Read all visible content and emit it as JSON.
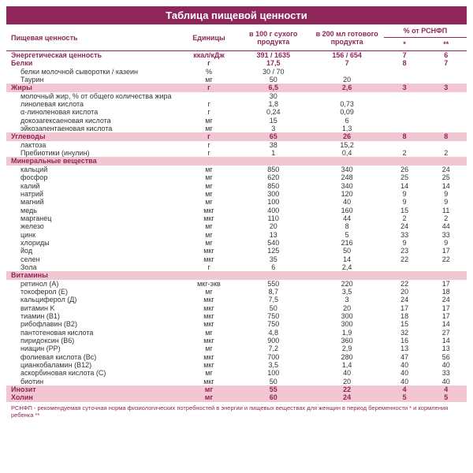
{
  "title": "Таблица пищевой ценности",
  "headers": {
    "name": "Пищевая ценность",
    "unit": "Единицы",
    "per100g": "в 100 г сухого продукта",
    "per200ml": "в 200 мл готового продукта",
    "rsnfp": "% от РСНФП",
    "star1": "*",
    "star2": "**"
  },
  "rows": [
    {
      "cls": "bold",
      "name": "Энергетическая ценность",
      "unit": "ккал/кДж",
      "v1": "391 / 1635",
      "v2": "156 / 654",
      "p1": "7",
      "p2": "6"
    },
    {
      "cls": "bold",
      "name": "Белки",
      "unit": "г",
      "v1": "17,5",
      "v2": "7",
      "p1": "8",
      "p2": "7"
    },
    {
      "cls": "indent",
      "name": "белки молочной сыворотки / казеин",
      "unit": "%",
      "v1": "30 / 70",
      "v2": "",
      "p1": "",
      "p2": ""
    },
    {
      "cls": "indent",
      "name": "Таурин",
      "unit": "мг",
      "v1": "50",
      "v2": "20",
      "p1": "",
      "p2": ""
    },
    {
      "cls": "pink",
      "name": "Жиры",
      "unit": "г",
      "v1": "6,5",
      "v2": "2,6",
      "p1": "3",
      "p2": "3"
    },
    {
      "cls": "indent",
      "name": "молочный жир, % от общего количества жира",
      "unit": "",
      "v1": "30",
      "v2": "",
      "p1": "",
      "p2": ""
    },
    {
      "cls": "indent",
      "name": "линолевая кислота",
      "unit": "г",
      "v1": "1,8",
      "v2": "0,73",
      "p1": "",
      "p2": ""
    },
    {
      "cls": "indent",
      "name": "α-линоленовая кислота",
      "unit": "г",
      "v1": "0,24",
      "v2": "0,09",
      "p1": "",
      "p2": ""
    },
    {
      "cls": "indent",
      "name": "докозагексаеновая кислота",
      "unit": "мг",
      "v1": "15",
      "v2": "6",
      "p1": "",
      "p2": ""
    },
    {
      "cls": "indent",
      "name": "эйкозапентаеновая кислота",
      "unit": "мг",
      "v1": "3",
      "v2": "1,3",
      "p1": "",
      "p2": ""
    },
    {
      "cls": "pink",
      "name": "Углеводы",
      "unit": "г",
      "v1": "65",
      "v2": "26",
      "p1": "8",
      "p2": "8"
    },
    {
      "cls": "indent",
      "name": "лактоза",
      "unit": "г",
      "v1": "38",
      "v2": "15,2",
      "p1": "",
      "p2": ""
    },
    {
      "cls": "indent",
      "name": "Пребиотики (инулин)",
      "unit": "г",
      "v1": "1",
      "v2": "0,4",
      "p1": "2",
      "p2": "2"
    },
    {
      "cls": "section",
      "name": "Минеральные вещества",
      "unit": "",
      "v1": "",
      "v2": "",
      "p1": "",
      "p2": ""
    },
    {
      "cls": "indent",
      "name": "кальций",
      "unit": "мг",
      "v1": "850",
      "v2": "340",
      "p1": "26",
      "p2": "24"
    },
    {
      "cls": "indent",
      "name": "фосфор",
      "unit": "мг",
      "v1": "620",
      "v2": "248",
      "p1": "25",
      "p2": "25"
    },
    {
      "cls": "indent",
      "name": "калий",
      "unit": "мг",
      "v1": "850",
      "v2": "340",
      "p1": "14",
      "p2": "14"
    },
    {
      "cls": "indent",
      "name": "натрий",
      "unit": "мг",
      "v1": "300",
      "v2": "120",
      "p1": "9",
      "p2": "9"
    },
    {
      "cls": "indent",
      "name": "магний",
      "unit": "мг",
      "v1": "100",
      "v2": "40",
      "p1": "9",
      "p2": "9"
    },
    {
      "cls": "indent",
      "name": "медь",
      "unit": "мкг",
      "v1": "400",
      "v2": "160",
      "p1": "15",
      "p2": "11"
    },
    {
      "cls": "indent",
      "name": "марганец",
      "unit": "мкг",
      "v1": "110",
      "v2": "44",
      "p1": "2",
      "p2": "2"
    },
    {
      "cls": "indent",
      "name": "железо",
      "unit": "мг",
      "v1": "20",
      "v2": "8",
      "p1": "24",
      "p2": "44"
    },
    {
      "cls": "indent",
      "name": "цинк",
      "unit": "мг",
      "v1": "13",
      "v2": "5",
      "p1": "33",
      "p2": "33"
    },
    {
      "cls": "indent",
      "name": "хлориды",
      "unit": "мг",
      "v1": "540",
      "v2": "216",
      "p1": "9",
      "p2": "9"
    },
    {
      "cls": "indent",
      "name": "йод",
      "unit": "мкг",
      "v1": "125",
      "v2": "50",
      "p1": "23",
      "p2": "17"
    },
    {
      "cls": "indent",
      "name": "селен",
      "unit": "мкг",
      "v1": "35",
      "v2": "14",
      "p1": "22",
      "p2": "22"
    },
    {
      "cls": "indent",
      "name": "Зола",
      "unit": "г",
      "v1": "6",
      "v2": "2,4",
      "p1": "",
      "p2": ""
    },
    {
      "cls": "section",
      "name": "Витамины",
      "unit": "",
      "v1": "",
      "v2": "",
      "p1": "",
      "p2": ""
    },
    {
      "cls": "indent",
      "name": "ретинол (А)",
      "unit": "мкг-экв",
      "v1": "550",
      "v2": "220",
      "p1": "22",
      "p2": "17"
    },
    {
      "cls": "indent",
      "name": "токоферол (Е)",
      "unit": "мг",
      "v1": "8,7",
      "v2": "3,5",
      "p1": "20",
      "p2": "18"
    },
    {
      "cls": "indent",
      "name": "кальциферол (Д)",
      "unit": "мкг",
      "v1": "7,5",
      "v2": "3",
      "p1": "24",
      "p2": "24"
    },
    {
      "cls": "indent",
      "name": "витамин K",
      "unit": "мкг",
      "v1": "50",
      "v2": "20",
      "p1": "17",
      "p2": "17"
    },
    {
      "cls": "indent",
      "name": "тиамин (В1)",
      "unit": "мкг",
      "v1": "750",
      "v2": "300",
      "p1": "18",
      "p2": "17"
    },
    {
      "cls": "indent",
      "name": "рибофлавин (В2)",
      "unit": "мкг",
      "v1": "750",
      "v2": "300",
      "p1": "15",
      "p2": "14"
    },
    {
      "cls": "indent",
      "name": "пантотеновая кислота",
      "unit": "мг",
      "v1": "4,8",
      "v2": "1,9",
      "p1": "32",
      "p2": "27"
    },
    {
      "cls": "indent",
      "name": "пиридоксин (В6)",
      "unit": "мкг",
      "v1": "900",
      "v2": "360",
      "p1": "16",
      "p2": "14"
    },
    {
      "cls": "indent",
      "name": "ниацин (РР)",
      "unit": "мг",
      "v1": "7,2",
      "v2": "2,9",
      "p1": "13",
      "p2": "13"
    },
    {
      "cls": "indent",
      "name": "фолиевая кислота (Вс)",
      "unit": "мкг",
      "v1": "700",
      "v2": "280",
      "p1": "47",
      "p2": "56"
    },
    {
      "cls": "indent",
      "name": "цианкобаламин (В12)",
      "unit": "мкг",
      "v1": "3,5",
      "v2": "1,4",
      "p1": "40",
      "p2": "40"
    },
    {
      "cls": "indent",
      "name": "аскорбиновая кислота (С)",
      "unit": "мг",
      "v1": "100",
      "v2": "40",
      "p1": "40",
      "p2": "33"
    },
    {
      "cls": "indent",
      "name": "биотин",
      "unit": "мкг",
      "v1": "50",
      "v2": "20",
      "p1": "40",
      "p2": "40"
    },
    {
      "cls": "pink",
      "name": "Инозит",
      "unit": "мг",
      "v1": "55",
      "v2": "22",
      "p1": "4",
      "p2": "4"
    },
    {
      "cls": "pink",
      "name": "Холин",
      "unit": "мг",
      "v1": "60",
      "v2": "24",
      "p1": "5",
      "p2": "5"
    }
  ],
  "footnote": "РСНФП - рекомендуемая суточная норма физиологических потребностей в энергии и пищевых веществах для женщин в период беременности * и кормления ребенка **",
  "colors": {
    "header_bg": "#8e2659",
    "pink_bg": "#f3c7d2",
    "accent": "#8e2659"
  },
  "colwidths": [
    "38%",
    "12%",
    "16%",
    "16%",
    "9%",
    "9%"
  ]
}
